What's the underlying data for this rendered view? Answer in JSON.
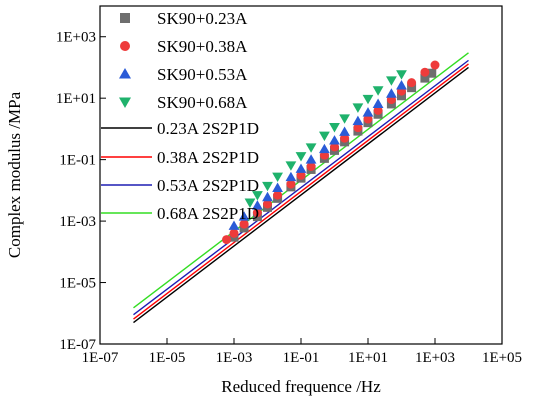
{
  "chart_data": {
    "type": "scatter",
    "title": "",
    "xlabel": "Reduced frequence /Hz",
    "ylabel": "Complex modulus /MPa",
    "xscale": "log",
    "yscale": "log",
    "xlim": [
      1e-07,
      100000.0
    ],
    "ylim": [
      1e-07,
      10000.0
    ],
    "xticks": [
      1e-07,
      1e-05,
      0.001,
      0.1,
      10.0,
      1000.0,
      100000.0
    ],
    "xtick_labels": [
      "1E-07",
      "1E-05",
      "1E-03",
      "1E-01",
      "1E+01",
      "1E+03",
      "1E+05"
    ],
    "yticks": [
      1e-07,
      1e-05,
      0.001,
      0.1,
      10.0,
      1000.0
    ],
    "ytick_labels": [
      "1E-07",
      "1E-05",
      "1E-03",
      "1E-01",
      "1E+01",
      "1E+03"
    ],
    "grid": false,
    "legend_position": "top-left",
    "series": [
      {
        "name": "SK90+0.23A",
        "kind": "scatter",
        "marker": "square",
        "color": "#6e6e6e",
        "x": [
          0.001,
          0.002,
          0.005,
          0.01,
          0.02,
          0.05,
          0.1,
          0.2,
          0.5,
          1,
          2,
          5,
          10,
          20,
          50,
          100,
          200,
          500,
          800
        ],
        "y": [
          0.0003,
          0.0006,
          0.0014,
          0.0028,
          0.0055,
          0.013,
          0.025,
          0.048,
          0.11,
          0.2,
          0.38,
          0.85,
          1.6,
          3.0,
          6.5,
          12,
          22,
          45,
          65
        ]
      },
      {
        "name": "SK90+0.38A",
        "kind": "scatter",
        "marker": "circle",
        "color": "#ee3b3b",
        "x": [
          0.0006,
          0.001,
          0.002,
          0.005,
          0.01,
          0.02,
          0.05,
          0.1,
          0.2,
          0.5,
          1,
          2,
          5,
          10,
          20,
          50,
          100,
          200,
          500,
          1000
        ],
        "y": [
          0.00025,
          0.0004,
          0.0008,
          0.0019,
          0.0036,
          0.007,
          0.016,
          0.031,
          0.06,
          0.14,
          0.26,
          0.5,
          1.1,
          2.1,
          4.0,
          9.0,
          17,
          32,
          70,
          120
        ]
      },
      {
        "name": "SK90+0.53A",
        "kind": "scatter",
        "marker": "triangle-up",
        "color": "#2a5bd7",
        "x": [
          0.001,
          0.002,
          0.005,
          0.01,
          0.02,
          0.05,
          0.1,
          0.2,
          0.5,
          1,
          2,
          5,
          10,
          20,
          50,
          100
        ],
        "y": [
          0.0007,
          0.0014,
          0.0032,
          0.006,
          0.012,
          0.027,
          0.05,
          0.1,
          0.22,
          0.42,
          0.8,
          1.8,
          3.4,
          6.5,
          14,
          26
        ]
      },
      {
        "name": "SK90+0.68A",
        "kind": "scatter",
        "marker": "triangle-down",
        "color": "#1fb26c",
        "x": [
          0.003,
          0.005,
          0.01,
          0.02,
          0.05,
          0.1,
          0.2,
          0.5,
          1,
          2,
          5,
          10,
          20,
          50,
          100
        ],
        "y": [
          0.004,
          0.007,
          0.014,
          0.028,
          0.065,
          0.13,
          0.25,
          0.6,
          1.15,
          2.2,
          5.0,
          9.5,
          18,
          38,
          60
        ]
      },
      {
        "name": "0.23A 2S2P1D",
        "kind": "line",
        "color": "#000000",
        "x": [
          1e-06,
          10000.0
        ],
        "y": [
          5e-07,
          100
        ]
      },
      {
        "name": "0.38A 2S2P1D",
        "kind": "line",
        "color": "#ff0000",
        "x": [
          1e-06,
          10000.0
        ],
        "y": [
          6.5e-07,
          130
        ]
      },
      {
        "name": "0.53A 2S2P1D",
        "kind": "line",
        "color": "#1e1eb4",
        "x": [
          1e-06,
          10000.0
        ],
        "y": [
          9e-07,
          170
        ]
      },
      {
        "name": "0.68A 2S2P1D",
        "kind": "line",
        "color": "#33dd22",
        "x": [
          1e-06,
          10000.0
        ],
        "y": [
          1.5e-06,
          300
        ]
      }
    ]
  }
}
